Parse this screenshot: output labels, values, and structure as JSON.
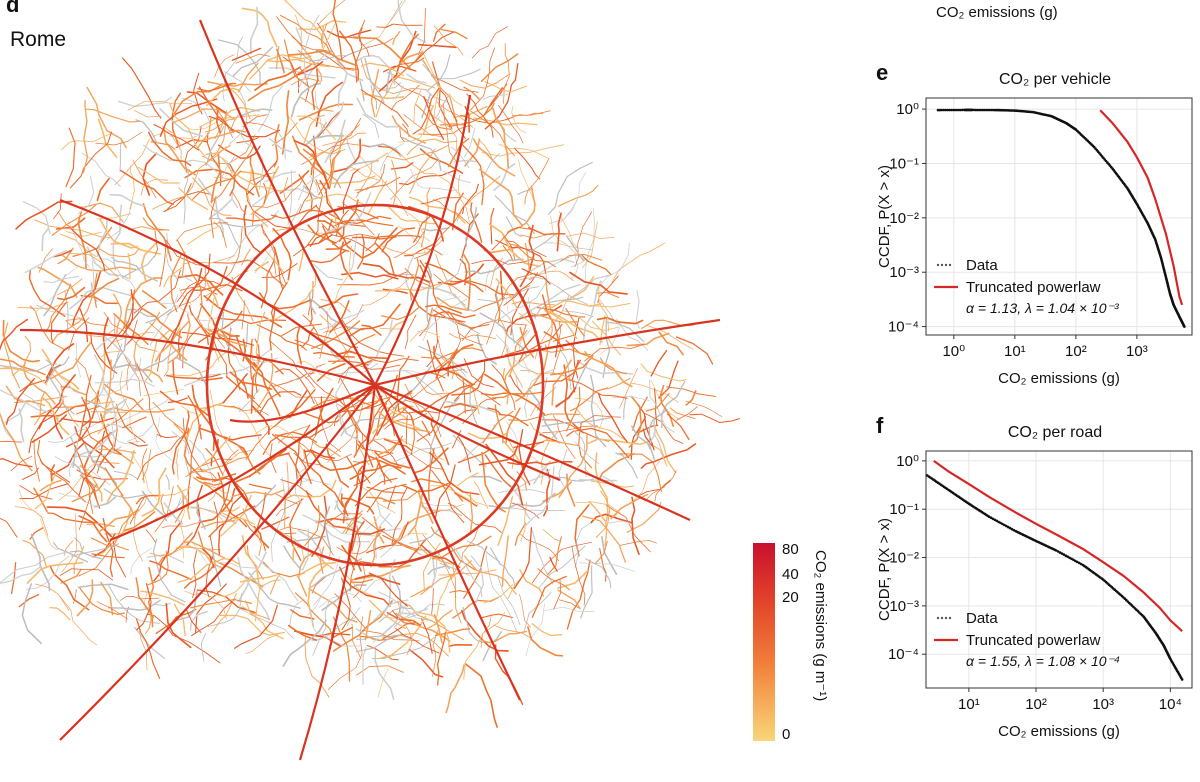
{
  "panel_d": {
    "letter": "d",
    "city": "Rome",
    "colorbar": {
      "label": "CO₂ emissions (g m⁻¹)",
      "ticks": [
        "80",
        "40",
        "20",
        "0"
      ],
      "color_low": "#f9d67a",
      "color_high": "#c8102e"
    }
  },
  "cropped_top_label": "CO₂ emissions (g)",
  "chart_data": [
    {
      "id": "e",
      "letter": "e",
      "type": "line",
      "title": "CO₂ per vehicle",
      "xlabel": "CO₂ emissions (g)",
      "ylabel": "CCDF, P(X > x)",
      "xscale": "log",
      "yscale": "log",
      "xlim": [
        0.35,
        8000
      ],
      "ylim": [
        7e-05,
        1.6
      ],
      "xticks": [
        1,
        10,
        100,
        1000
      ],
      "yticks": [
        1,
        0.1,
        0.01,
        0.001,
        0.0001
      ],
      "xtick_labels": [
        "10⁰",
        "10¹",
        "10²",
        "10³"
      ],
      "ytick_labels": [
        "10⁰",
        "10⁻¹",
        "10⁻²",
        "10⁻³",
        "10⁻⁴"
      ],
      "grid": true,
      "legend_placement": "bottom-left",
      "series": [
        {
          "name": "Data",
          "color": "#111111",
          "points": [
            [
              0.55,
              0.96
            ],
            [
              1.5,
              0.965
            ],
            [
              2,
              0.965
            ],
            [
              5,
              0.96
            ],
            [
              10,
              0.94
            ],
            [
              20,
              0.88
            ],
            [
              40,
              0.74
            ],
            [
              70,
              0.55
            ],
            [
              100,
              0.42
            ],
            [
              200,
              0.2
            ],
            [
              400,
              0.08
            ],
            [
              700,
              0.035
            ],
            [
              1000,
              0.018
            ],
            [
              1500,
              0.008
            ],
            [
              2000,
              0.004
            ],
            [
              2500,
              0.0018
            ],
            [
              3000,
              0.0008
            ],
            [
              3500,
              0.0004
            ],
            [
              4000,
              0.00025
            ],
            [
              5000,
              0.00015
            ],
            [
              6000,
              0.0001
            ]
          ]
        },
        {
          "name": "Truncated powerlaw",
          "color": "#d62728",
          "points": [
            [
              250,
              0.95
            ],
            [
              400,
              0.55
            ],
            [
              700,
              0.25
            ],
            [
              1000,
              0.13
            ],
            [
              1500,
              0.055
            ],
            [
              2000,
              0.022
            ],
            [
              3000,
              0.005
            ],
            [
              4000,
              0.0013
            ],
            [
              5000,
              0.00035
            ],
            [
              5500,
              0.00025
            ]
          ]
        }
      ],
      "legend": {
        "data_label": "Data",
        "fit_label": "Truncated powerlaw",
        "params": "α = 1.13, λ = 1.04 × 10⁻³"
      }
    },
    {
      "id": "f",
      "letter": "f",
      "type": "line",
      "title": "CO₂ per road",
      "xlabel": "CO₂ emissions (g)",
      "ylabel": "CCDF, P(X > x)",
      "xscale": "log",
      "yscale": "log",
      "xlim": [
        2.3,
        21000
      ],
      "ylim": [
        2e-05,
        1.6
      ],
      "xticks": [
        10,
        100,
        1000,
        10000
      ],
      "yticks": [
        1,
        0.1,
        0.01,
        0.001,
        0.0001
      ],
      "xtick_labels": [
        "10¹",
        "10²",
        "10³",
        "10⁴"
      ],
      "ytick_labels": [
        "10⁰",
        "10⁻¹",
        "10⁻²",
        "10⁻³",
        "10⁻⁴"
      ],
      "grid": true,
      "legend_placement": "bottom-left",
      "series": [
        {
          "name": "Data",
          "color": "#111111",
          "points": [
            [
              2.4,
              0.5
            ],
            [
              5,
              0.25
            ],
            [
              10,
              0.13
            ],
            [
              20,
              0.07
            ],
            [
              50,
              0.035
            ],
            [
              100,
              0.022
            ],
            [
              200,
              0.014
            ],
            [
              500,
              0.007
            ],
            [
              1000,
              0.0035
            ],
            [
              2000,
              0.0015
            ],
            [
              4000,
              0.0006
            ],
            [
              6000,
              0.00028
            ],
            [
              8000,
              0.00015
            ],
            [
              10000,
              8e-05
            ],
            [
              15000,
              3e-05
            ]
          ]
        },
        {
          "name": "Truncated powerlaw",
          "color": "#d62728",
          "points": [
            [
              3,
              1.0
            ],
            [
              5,
              0.6
            ],
            [
              10,
              0.33
            ],
            [
              20,
              0.18
            ],
            [
              50,
              0.085
            ],
            [
              100,
              0.05
            ],
            [
              200,
              0.03
            ],
            [
              500,
              0.015
            ],
            [
              1000,
              0.008
            ],
            [
              2000,
              0.0042
            ],
            [
              4000,
              0.0019
            ],
            [
              7000,
              0.0009
            ],
            [
              10000,
              0.0005
            ],
            [
              15000,
              0.0003
            ]
          ]
        }
      ],
      "legend": {
        "data_label": "Data",
        "fit_label": "Truncated powerlaw",
        "params": "α = 1.55, λ = 1.08 × 10⁻⁴"
      }
    }
  ]
}
